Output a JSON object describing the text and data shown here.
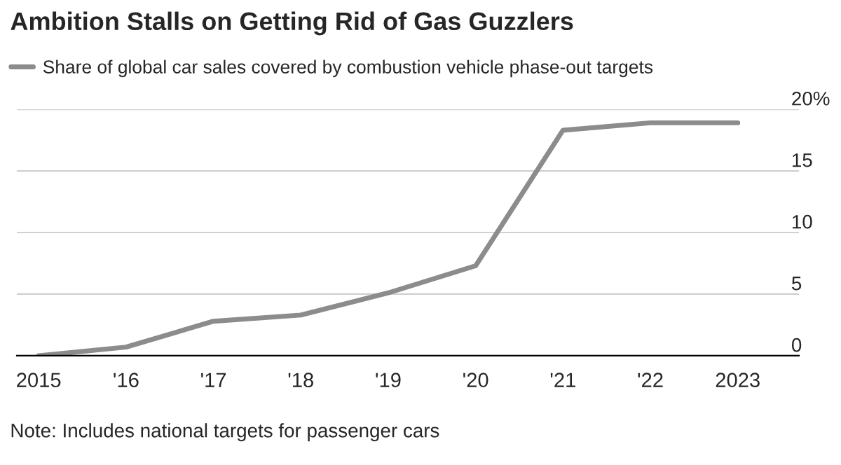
{
  "chart_data": {
    "type": "line",
    "title": "Ambition Stalls on Getting Rid of Gas Guzzlers",
    "x": [
      2015,
      2016,
      2017,
      2018,
      2019,
      2020,
      2021,
      2022,
      2023
    ],
    "series": [
      {
        "name": "Share of global car sales covered by combustion vehicle phase-out targets",
        "color": "#8c8c8c",
        "values": [
          0,
          0.7,
          2.8,
          3.3,
          5.1,
          7.3,
          18.3,
          18.9,
          18.9
        ]
      }
    ],
    "xlim": [
      2014.75,
      2023.7
    ],
    "xticks": [
      2015,
      {
        "value": 2016,
        "label": "'16"
      },
      {
        "value": 2017,
        "label": "'17"
      },
      {
        "value": 2018,
        "label": "'18"
      },
      {
        "value": 2019,
        "label": "'19"
      },
      {
        "value": 2020,
        "label": "'20"
      },
      {
        "value": 2021,
        "label": "'21"
      },
      {
        "value": 2022,
        "label": "'22"
      },
      2023
    ],
    "ylim": [
      0,
      20
    ],
    "yticks": [
      0,
      5,
      10,
      15,
      {
        "value": 20,
        "label": "20%"
      }
    ],
    "grid": "y",
    "legend": "top left",
    "marker": "none",
    "line_style": "solid",
    "annotations": [
      "Note: Includes national targets for passenger cars"
    ]
  }
}
